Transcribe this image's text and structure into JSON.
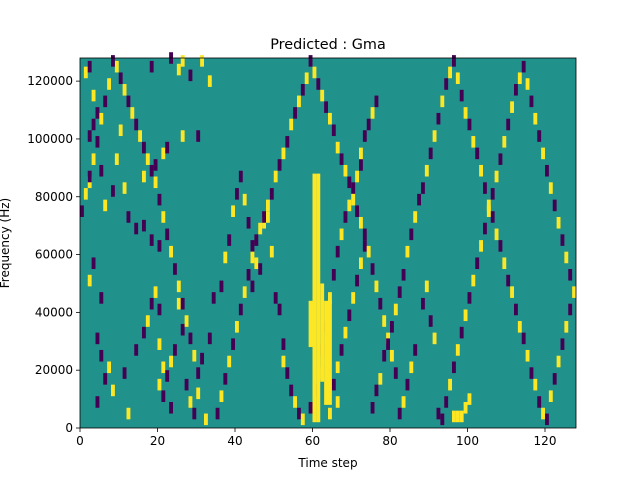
{
  "chart_data": {
    "type": "heatmap",
    "title": "Predicted : Gma",
    "xlabel": "Time step",
    "ylabel": "Frequency (Hz)",
    "xlim": [
      0,
      128
    ],
    "ylim": [
      0,
      128000
    ],
    "xticks": [
      0,
      20,
      40,
      60,
      80,
      100,
      120
    ],
    "yticks": [
      0,
      20000,
      40000,
      60000,
      80000,
      100000,
      120000
    ],
    "xtick_labels": [
      "0",
      "20",
      "40",
      "60",
      "80",
      "100",
      "120"
    ],
    "ytick_labels": [
      "0",
      "20000",
      "40000",
      "60000",
      "80000",
      "100000",
      "120000"
    ],
    "colors": {
      "background": "#21918c",
      "low": "#440154",
      "high": "#fde725"
    },
    "cells": [
      [
        1,
        122000,
        1
      ],
      [
        2,
        124000,
        0
      ],
      [
        3,
        114000,
        1
      ],
      [
        3,
        104000,
        0
      ],
      [
        2,
        100000,
        0
      ],
      [
        4,
        108000,
        0
      ],
      [
        5,
        88000,
        0
      ],
      [
        2,
        84000,
        1
      ],
      [
        6,
        76000,
        1
      ],
      [
        8,
        81000,
        0
      ],
      [
        10,
        102000,
        1
      ],
      [
        9,
        92000,
        1
      ],
      [
        11,
        82000,
        1
      ],
      [
        12,
        72000,
        0
      ],
      [
        14,
        68000,
        0
      ],
      [
        18,
        64000,
        0
      ],
      [
        16,
        86000,
        1
      ],
      [
        19,
        90000,
        0
      ],
      [
        21,
        94000,
        1
      ],
      [
        22,
        96000,
        0
      ],
      [
        18,
        124000,
        0
      ],
      [
        23,
        127000,
        0
      ],
      [
        25,
        123000,
        1
      ],
      [
        26,
        126000,
        1
      ],
      [
        28,
        121000,
        0
      ],
      [
        31,
        126000,
        1
      ],
      [
        33,
        119000,
        1
      ],
      [
        30,
        100000,
        0
      ],
      [
        26,
        100000,
        1
      ],
      [
        16,
        69000,
        0
      ],
      [
        20,
        62000,
        0
      ],
      [
        3,
        56000,
        0
      ],
      [
        2,
        50000,
        1
      ],
      [
        5,
        44000,
        0
      ],
      [
        4,
        30000,
        0
      ],
      [
        5,
        24000,
        0
      ],
      [
        7,
        20000,
        1
      ],
      [
        6,
        16000,
        0
      ],
      [
        8,
        12000,
        1
      ],
      [
        4,
        8000,
        0
      ],
      [
        11,
        18000,
        0
      ],
      [
        12,
        4000,
        1
      ],
      [
        14,
        26000,
        0
      ],
      [
        16,
        32000,
        0
      ],
      [
        17,
        36000,
        1
      ],
      [
        18,
        42000,
        0
      ],
      [
        19,
        46000,
        1
      ],
      [
        20,
        40000,
        0
      ],
      [
        20,
        28000,
        1
      ],
      [
        21,
        20000,
        1
      ],
      [
        20,
        14000,
        1
      ],
      [
        21,
        10000,
        0
      ],
      [
        22,
        17000,
        0
      ],
      [
        23,
        22000,
        1
      ],
      [
        23,
        6000,
        0
      ],
      [
        24,
        26000,
        0
      ],
      [
        25,
        42000,
        1
      ],
      [
        26,
        33000,
        0
      ],
      [
        27,
        14000,
        0
      ],
      [
        28,
        8000,
        1
      ],
      [
        29,
        4000,
        0
      ],
      [
        30,
        11000,
        1
      ],
      [
        31,
        23000,
        0
      ],
      [
        32,
        2000,
        1
      ],
      [
        33,
        30000,
        0
      ],
      [
        34,
        44000,
        0
      ],
      [
        36,
        48000,
        0
      ],
      [
        37,
        58000,
        1
      ],
      [
        38,
        64000,
        0
      ],
      [
        39,
        74000,
        1
      ],
      [
        40,
        80000,
        0
      ],
      [
        41,
        86000,
        0
      ],
      [
        42,
        78000,
        1
      ],
      [
        43,
        70000,
        0
      ],
      [
        44,
        62000,
        0
      ],
      [
        45,
        56000,
        1
      ],
      [
        44,
        48000,
        0
      ],
      [
        46,
        54000,
        0
      ],
      [
        47,
        70000,
        1
      ],
      [
        48,
        72000,
        1
      ],
      [
        49,
        60000,
        1
      ],
      [
        50,
        44000,
        0
      ],
      [
        51,
        40000,
        0
      ],
      [
        52,
        28000,
        0
      ],
      [
        52,
        22000,
        1
      ],
      [
        53,
        18000,
        0
      ],
      [
        54,
        12000,
        0
      ],
      [
        55,
        8000,
        1
      ],
      [
        56,
        4000,
        0
      ],
      [
        57,
        2000,
        1
      ],
      [
        59,
        6000,
        0
      ],
      [
        60,
        12000,
        0
      ],
      [
        61,
        18000,
        1
      ],
      [
        62,
        26000,
        0
      ],
      [
        63,
        34000,
        0
      ],
      [
        64,
        44000,
        1
      ],
      [
        65,
        52000,
        0
      ],
      [
        66,
        60000,
        0
      ],
      [
        67,
        66000,
        1
      ],
      [
        68,
        72000,
        0
      ],
      [
        69,
        76000,
        1
      ],
      [
        70,
        82000,
        0
      ],
      [
        71,
        86000,
        1
      ],
      [
        72,
        90000,
        0
      ],
      [
        72,
        94000,
        1
      ],
      [
        73,
        100000,
        0
      ],
      [
        74,
        104000,
        0
      ],
      [
        75,
        108000,
        1
      ],
      [
        76,
        112000,
        0
      ],
      [
        73,
        62000,
        0
      ],
      [
        72,
        56000,
        1
      ],
      [
        71,
        50000,
        0
      ],
      [
        70,
        44000,
        1
      ],
      [
        69,
        38000,
        0
      ],
      [
        68,
        32000,
        1
      ],
      [
        67,
        26000,
        0
      ],
      [
        66,
        20000,
        1
      ],
      [
        65,
        14000,
        0
      ],
      [
        66,
        8000,
        1
      ],
      [
        64,
        4000,
        1
      ],
      [
        75,
        6000,
        0
      ],
      [
        76,
        12000,
        0
      ],
      [
        77,
        16000,
        1
      ],
      [
        78,
        24000,
        0
      ],
      [
        79,
        30000,
        1
      ],
      [
        80,
        34000,
        0
      ],
      [
        81,
        40000,
        1
      ],
      [
        82,
        46000,
        0
      ],
      [
        83,
        52000,
        0
      ],
      [
        84,
        60000,
        1
      ],
      [
        85,
        66000,
        0
      ],
      [
        86,
        72000,
        1
      ],
      [
        87,
        78000,
        0
      ],
      [
        88,
        82000,
        0
      ],
      [
        89,
        88000,
        1
      ],
      [
        90,
        94000,
        0
      ],
      [
        91,
        100000,
        1
      ],
      [
        92,
        106000,
        0
      ],
      [
        93,
        112000,
        1
      ],
      [
        94,
        118000,
        0
      ],
      [
        95,
        122000,
        1
      ],
      [
        96,
        126000,
        0
      ],
      [
        97,
        120000,
        1
      ],
      [
        98,
        114000,
        0
      ],
      [
        99,
        108000,
        1
      ],
      [
        100,
        104000,
        0
      ],
      [
        101,
        98000,
        1
      ],
      [
        102,
        94000,
        0
      ],
      [
        103,
        88000,
        1
      ],
      [
        104,
        82000,
        0
      ],
      [
        105,
        76000,
        1
      ],
      [
        106,
        72000,
        0
      ],
      [
        107,
        66000,
        1
      ],
      [
        108,
        62000,
        0
      ],
      [
        109,
        56000,
        1
      ],
      [
        110,
        50000,
        0
      ],
      [
        111,
        46000,
        1
      ],
      [
        112,
        40000,
        0
      ],
      [
        113,
        34000,
        1
      ],
      [
        114,
        30000,
        0
      ],
      [
        115,
        24000,
        1
      ],
      [
        116,
        18000,
        0
      ],
      [
        117,
        14000,
        1
      ],
      [
        118,
        8000,
        0
      ],
      [
        119,
        4000,
        1
      ],
      [
        120,
        2000,
        0
      ],
      [
        121,
        10000,
        1
      ],
      [
        122,
        16000,
        0
      ],
      [
        123,
        22000,
        1
      ],
      [
        124,
        28000,
        0
      ],
      [
        125,
        34000,
        1
      ],
      [
        126,
        40000,
        0
      ],
      [
        127,
        46000,
        1
      ],
      [
        126,
        52000,
        0
      ],
      [
        125,
        58000,
        1
      ],
      [
        124,
        64000,
        0
      ],
      [
        123,
        70000,
        1
      ],
      [
        122,
        76000,
        0
      ],
      [
        121,
        82000,
        1
      ],
      [
        120,
        88000,
        0
      ],
      [
        119,
        94000,
        1
      ],
      [
        118,
        100000,
        0
      ],
      [
        117,
        106000,
        1
      ],
      [
        116,
        112000,
        0
      ],
      [
        115,
        118000,
        1
      ],
      [
        114,
        124000,
        0
      ],
      [
        113,
        120000,
        1
      ],
      [
        112,
        116000,
        0
      ],
      [
        111,
        110000,
        1
      ],
      [
        110,
        104000,
        0
      ],
      [
        109,
        98000,
        1
      ],
      [
        108,
        92000,
        0
      ],
      [
        107,
        86000,
        1
      ],
      [
        106,
        80000,
        0
      ],
      [
        105,
        74000,
        1
      ],
      [
        104,
        68000,
        0
      ],
      [
        103,
        62000,
        1
      ],
      [
        102,
        56000,
        0
      ],
      [
        101,
        50000,
        1
      ],
      [
        100,
        44000,
        0
      ],
      [
        99,
        38000,
        1
      ],
      [
        98,
        32000,
        0
      ],
      [
        97,
        26000,
        1
      ],
      [
        96,
        20000,
        0
      ],
      [
        95,
        14000,
        1
      ],
      [
        94,
        8000,
        0
      ],
      [
        93,
        2000,
        0
      ],
      [
        92,
        4000,
        0
      ],
      [
        96,
        3000,
        1
      ],
      [
        97,
        3000,
        1
      ],
      [
        98,
        3000,
        1
      ],
      [
        99,
        6000,
        1
      ],
      [
        100,
        9000,
        1
      ],
      [
        88,
        42000,
        0
      ],
      [
        89,
        48000,
        1
      ],
      [
        90,
        36000,
        0
      ],
      [
        91,
        30000,
        1
      ],
      [
        86,
        26000,
        0
      ],
      [
        85,
        20000,
        1
      ],
      [
        84,
        14000,
        0
      ],
      [
        83,
        8000,
        1
      ],
      [
        82,
        4000,
        0
      ],
      [
        81,
        18000,
        0
      ],
      [
        80,
        24000,
        1
      ],
      [
        79,
        28000,
        0
      ],
      [
        78,
        36000,
        1
      ],
      [
        77,
        42000,
        0
      ],
      [
        76,
        48000,
        1
      ],
      [
        75,
        54000,
        0
      ],
      [
        74,
        60000,
        1
      ],
      [
        73,
        66000,
        0
      ],
      [
        72,
        70000,
        1
      ],
      [
        71,
        74000,
        0
      ],
      [
        70,
        78000,
        1
      ],
      [
        69,
        84000,
        0
      ],
      [
        68,
        88000,
        1
      ],
      [
        67,
        92000,
        0
      ],
      [
        66,
        96000,
        1
      ],
      [
        65,
        102000,
        0
      ],
      [
        64,
        106000,
        1
      ],
      [
        63,
        110000,
        0
      ],
      [
        62,
        114000,
        1
      ],
      [
        61,
        118000,
        0
      ],
      [
        60,
        122000,
        1
      ],
      [
        59,
        126000,
        0
      ],
      [
        58,
        120000,
        1
      ],
      [
        57,
        116000,
        0
      ],
      [
        56,
        112000,
        1
      ],
      [
        55,
        108000,
        0
      ],
      [
        54,
        104000,
        1
      ],
      [
        53,
        98000,
        0
      ],
      [
        52,
        94000,
        1
      ],
      [
        51,
        90000,
        0
      ],
      [
        50,
        86000,
        1
      ],
      [
        49,
        80000,
        0
      ],
      [
        48,
        76000,
        1
      ],
      [
        47,
        72000,
        0
      ],
      [
        46,
        68000,
        1
      ],
      [
        45,
        64000,
        0
      ],
      [
        44,
        58000,
        1
      ],
      [
        43,
        52000,
        0
      ],
      [
        42,
        46000,
        1
      ],
      [
        41,
        40000,
        0
      ],
      [
        40,
        34000,
        1
      ],
      [
        39,
        28000,
        0
      ],
      [
        38,
        22000,
        1
      ],
      [
        37,
        16000,
        0
      ],
      [
        36,
        10000,
        1
      ],
      [
        35,
        4000,
        0
      ],
      [
        30,
        18000,
        0
      ],
      [
        29,
        24000,
        1
      ],
      [
        28,
        30000,
        0
      ],
      [
        27,
        36000,
        1
      ],
      [
        26,
        42000,
        0
      ],
      [
        25,
        48000,
        1
      ],
      [
        24,
        54000,
        0
      ],
      [
        23,
        60000,
        1
      ],
      [
        22,
        66000,
        0
      ],
      [
        21,
        72000,
        1
      ],
      [
        20,
        78000,
        0
      ],
      [
        19,
        84000,
        1
      ],
      [
        18,
        88000,
        0
      ],
      [
        17,
        92000,
        1
      ],
      [
        16,
        96000,
        0
      ],
      [
        15,
        100000,
        1
      ],
      [
        14,
        104000,
        0
      ],
      [
        13,
        108000,
        1
      ],
      [
        12,
        112000,
        0
      ],
      [
        11,
        116000,
        1
      ],
      [
        10,
        120000,
        0
      ],
      [
        9,
        124000,
        1
      ],
      [
        8,
        126000,
        0
      ],
      [
        7,
        118000,
        1
      ],
      [
        6,
        112000,
        0
      ],
      [
        5,
        106000,
        1
      ],
      [
        4,
        98000,
        0
      ],
      [
        3,
        92000,
        1
      ],
      [
        2,
        86000,
        0
      ],
      [
        1,
        80000,
        1
      ],
      [
        0,
        74000,
        0
      ]
    ],
    "bands": [
      {
        "x": 60,
        "y0": 2000,
        "y1": 88000,
        "value": 1
      },
      {
        "x": 61,
        "y0": 2000,
        "y1": 88000,
        "value": 1
      },
      {
        "x": 62,
        "y0": 16000,
        "y1": 50000,
        "value": 1
      },
      {
        "x": 63,
        "y0": 8000,
        "y1": 44000,
        "value": 1
      },
      {
        "x": 64,
        "y0": 8000,
        "y1": 44000,
        "value": 1
      },
      {
        "x": 59,
        "y0": 28000,
        "y1": 44000,
        "value": 1
      }
    ]
  }
}
